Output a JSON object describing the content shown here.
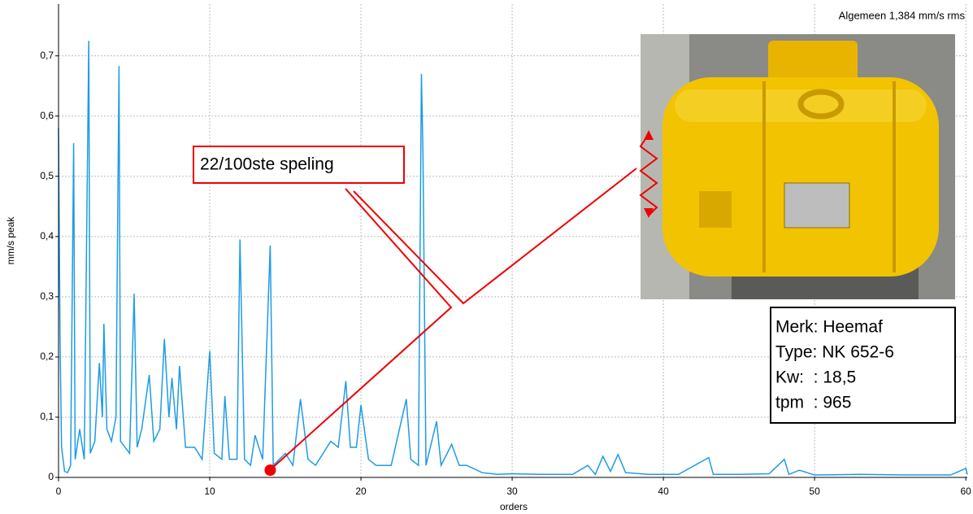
{
  "chart_data": {
    "type": "line",
    "y_label": "mm/s peak",
    "x_label": "orders",
    "color": "#1e9be6",
    "x": [
      0,
      0.1,
      0.2,
      0.4,
      0.6,
      0.8,
      1.0,
      1.1,
      1.4,
      1.7,
      2.0,
      2.1,
      2.4,
      2.7,
      2.9,
      3.0,
      3.2,
      3.5,
      3.8,
      4.0,
      4.1,
      4.4,
      4.7,
      5.0,
      5.2,
      5.5,
      6.0,
      6.3,
      6.7,
      7.0,
      7.3,
      7.5,
      7.8,
      8.0,
      8.4,
      9.0,
      9.5,
      10.0,
      10.3,
      10.8,
      11.0,
      11.3,
      11.8,
      12.0,
      12.3,
      12.7,
      13.0,
      13.5,
      14.0,
      14.2,
      15.0,
      15.5,
      16.0,
      16.5,
      17.0,
      18.0,
      18.5,
      19.0,
      19.3,
      19.7,
      20.0,
      20.5,
      21.0,
      22.0,
      23.0,
      23.3,
      23.8,
      24.0,
      24.1,
      24.3,
      25.0,
      25.3,
      26.0,
      26.5,
      27.0,
      28.0,
      29,
      30,
      32,
      34,
      35,
      35.5,
      36,
      36.5,
      37,
      37.5,
      39,
      41,
      43,
      43.3,
      45,
      47,
      48,
      48.3,
      49,
      50,
      53,
      56,
      59,
      60,
      60.1
    ],
    "values": [
      0.58,
      0.23,
      0.05,
      0.01,
      0.008,
      0.02,
      0.555,
      0.03,
      0.08,
      0.03,
      0.725,
      0.04,
      0.06,
      0.19,
      0.1,
      0.255,
      0.08,
      0.06,
      0.1,
      0.683,
      0.06,
      0.05,
      0.04,
      0.305,
      0.05,
      0.08,
      0.17,
      0.06,
      0.08,
      0.23,
      0.1,
      0.165,
      0.08,
      0.185,
      0.05,
      0.05,
      0.03,
      0.21,
      0.04,
      0.03,
      0.135,
      0.03,
      0.03,
      0.395,
      0.03,
      0.02,
      0.07,
      0.03,
      0.385,
      0.02,
      0.04,
      0.02,
      0.13,
      0.03,
      0.02,
      0.06,
      0.05,
      0.16,
      0.05,
      0.05,
      0.12,
      0.03,
      0.02,
      0.02,
      0.13,
      0.03,
      0.02,
      0.67,
      0.54,
      0.02,
      0.093,
      0.02,
      0.055,
      0.02,
      0.02,
      0.008,
      0.005,
      0.006,
      0.005,
      0.005,
      0.02,
      0.005,
      0.035,
      0.01,
      0.038,
      0.008,
      0.005,
      0.005,
      0.033,
      0.005,
      0.005,
      0.006,
      0.03,
      0.005,
      0.012,
      0.004,
      0.005,
      0.004,
      0.004,
      0.015,
      0.005
    ],
    "xlim": [
      0,
      60.1
    ],
    "ylim": [
      0,
      0.786
    ],
    "xticks": [
      0,
      10,
      20,
      30,
      40,
      50,
      60
    ],
    "yticks": [
      0,
      {
        "value": 0.1,
        "label": "0,1"
      },
      {
        "value": 0.2,
        "label": "0,2"
      },
      {
        "value": 0.3,
        "label": "0,3"
      },
      {
        "value": 0.4,
        "label": "0,4"
      },
      {
        "value": 0.5,
        "label": "0,5"
      },
      {
        "value": 0.6,
        "label": "0,6"
      },
      {
        "value": 0.7,
        "label": "0,7"
      }
    ],
    "grid": true,
    "marker": {
      "x": 14,
      "y": 0.012
    },
    "annotations": {
      "overall": "Algemeen 1,384 mm/s rms",
      "callout": "22/100ste speling",
      "info": [
        "Merk: Heemaf",
        "Type: NK 652-6",
        "Kw:  : 18,5",
        "tpm  : 965"
      ]
    }
  }
}
